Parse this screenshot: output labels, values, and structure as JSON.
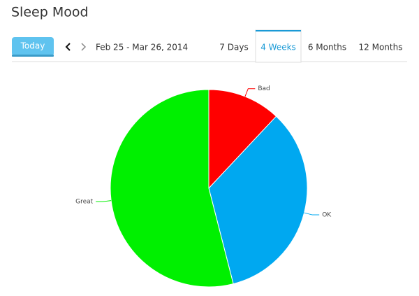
{
  "header": {
    "title": "Sleep Mood"
  },
  "toolbar": {
    "today": "Today",
    "date_range": "Feb 25 - Mar 26, 2014",
    "tabs": [
      "7 Days",
      "4 Weeks",
      "6 Months",
      "12 Months"
    ],
    "active_tab": 1
  },
  "chart_data": {
    "type": "pie",
    "categories": [
      "Bad",
      "OK",
      "Great"
    ],
    "values": [
      12,
      34,
      54
    ],
    "colors": [
      "#ff0000",
      "#00a8f0",
      "#00f000"
    ]
  }
}
